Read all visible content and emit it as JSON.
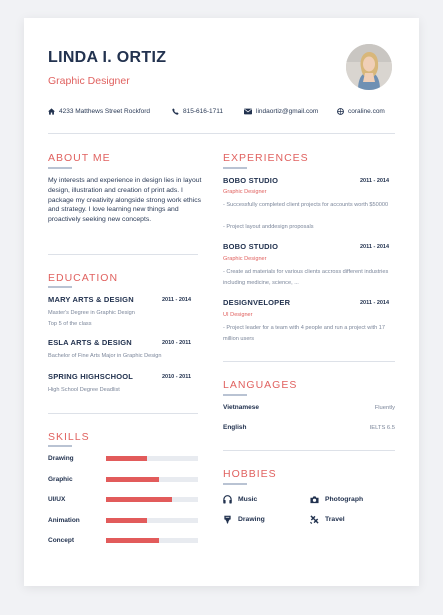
{
  "header": {
    "name": "LINDA I. ORTIZ",
    "role": "Graphic Designer"
  },
  "contact": {
    "address": "4233 Matthews Street Rockford",
    "phone": "815-616-1711",
    "email": "lindaortiz@gmail.com",
    "website": "coraline.com"
  },
  "about": {
    "title": "ABOUT ME",
    "text": "My interests and experience in design lies in layout design, illustration and creation of print ads. I package my creativity alongside strong work ethics and strategy. I love learning new things and proactively seeking new concepts."
  },
  "education": {
    "title": "EDUCATION",
    "items": [
      {
        "school": "MARY ARTS & DESIGN",
        "dates": "2011 - 2014",
        "lines": [
          "Master's Degree in Graphic Design",
          "Top 5 of the class"
        ]
      },
      {
        "school": "ESLA ARTS & DESIGN",
        "dates": "2010 - 2011",
        "lines": [
          "Bachelor of Fine Arts Major in Graphic Design"
        ]
      },
      {
        "school": "SPRING HIGHSCHOOL",
        "dates": "2010 - 2011",
        "lines": [
          "High School Degree Deadlist"
        ]
      }
    ]
  },
  "skills": {
    "title": "SKILLS",
    "items": [
      {
        "label": "Drawing",
        "level": 0.45
      },
      {
        "label": "Graphic",
        "level": 0.58
      },
      {
        "label": "UI/UX",
        "level": 0.72
      },
      {
        "label": "Animation",
        "level": 0.45
      },
      {
        "label": "Concept",
        "level": 0.58
      }
    ]
  },
  "experiences": {
    "title": "EXPERIENCES",
    "items": [
      {
        "company": "BOBO STUDIO",
        "dates": "2011 - 2014",
        "role": "Graphic Designer",
        "desc": [
          "- Successfully completed client projects for accounts worth $50000",
          "- Project layout anddesign proposals"
        ]
      },
      {
        "company": "BOBO STUDIO",
        "dates": "2011 - 2014",
        "role": "Graphic Designer",
        "desc": [
          "- Create ad materials for various clients accross different industries including medicine, science, ..."
        ]
      },
      {
        "company": "DESIGNVELOPER",
        "dates": "2011 - 2014",
        "role": "UI Designer",
        "desc": [
          "- Project leader for a team with 4 people and run a project with 17 million users"
        ]
      }
    ]
  },
  "languages": {
    "title": "LANGUAGES",
    "items": [
      {
        "name": "Vietnamese",
        "level": "Fluently"
      },
      {
        "name": "English",
        "level": "IELTS 6.5"
      }
    ]
  },
  "hobbies": {
    "title": "HOBBIES",
    "items": [
      {
        "label": "Music",
        "icon": "headphones-icon"
      },
      {
        "label": "Photograph",
        "icon": "camera-icon"
      },
      {
        "label": "Drawing",
        "icon": "brush-icon"
      },
      {
        "label": "Travel",
        "icon": "plane-icon"
      }
    ]
  },
  "colors": {
    "accent": "#e0615f",
    "navy": "#22324f",
    "muted": "#7b869a"
  }
}
